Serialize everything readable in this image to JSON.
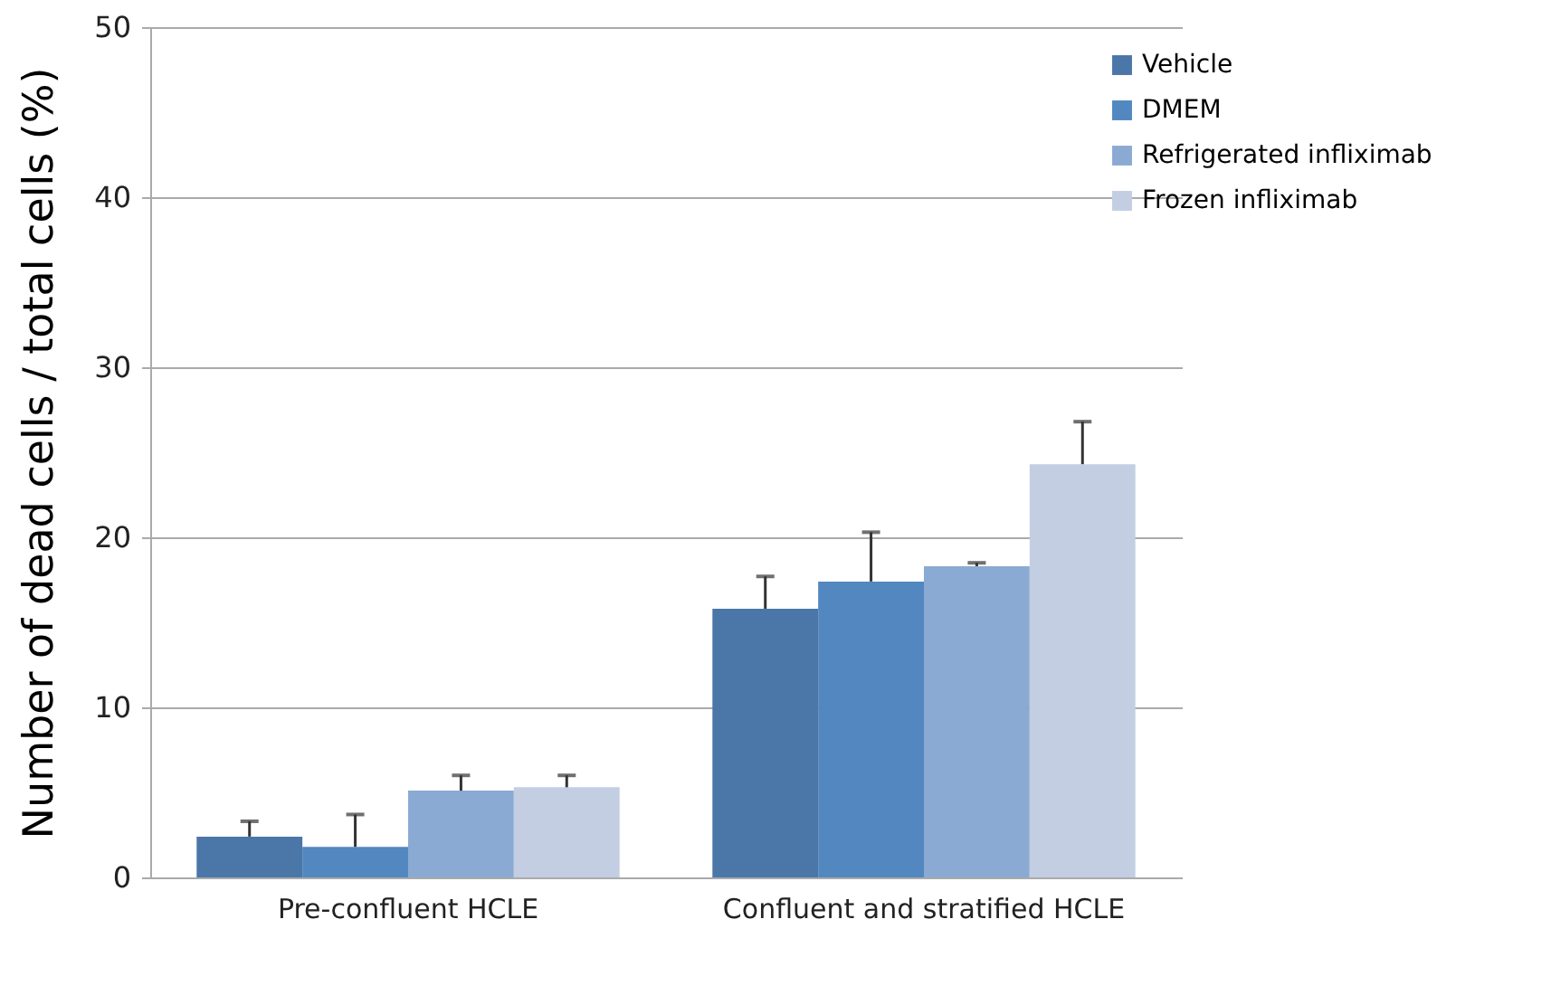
{
  "chart_data": {
    "type": "bar",
    "ylabel": "Number of dead cells / total cells (%)",
    "categories": [
      "Pre-confluent HCLE",
      "Confluent and stratified HCLE"
    ],
    "series": [
      {
        "name": "Vehicle",
        "color": "#4a76a8",
        "values": [
          2.4,
          15.8
        ],
        "errors": [
          [
            2.4,
            3.3
          ],
          [
            15.8,
            17.7
          ]
        ]
      },
      {
        "name": "DMEM",
        "color": "#5287c0",
        "values": [
          1.8,
          17.4
        ],
        "errors": [
          [
            1.8,
            3.7
          ],
          [
            17.4,
            20.3
          ]
        ]
      },
      {
        "name": "Refrigerated infliximab",
        "color": "#8aaad3",
        "values": [
          5.1,
          18.3
        ],
        "errors": [
          [
            5.1,
            6.0
          ],
          [
            18.3,
            18.5
          ]
        ]
      },
      {
        "name": "Frozen infliximab",
        "color": "#c3cee2",
        "values": [
          5.3,
          24.3
        ],
        "errors": [
          [
            5.3,
            6.0
          ],
          [
            24.3,
            26.8
          ]
        ]
      }
    ],
    "ylim": [
      0,
      50
    ],
    "yticks": [
      0,
      10,
      20,
      30,
      40,
      50
    ],
    "grid": "y",
    "legend": "top right"
  }
}
